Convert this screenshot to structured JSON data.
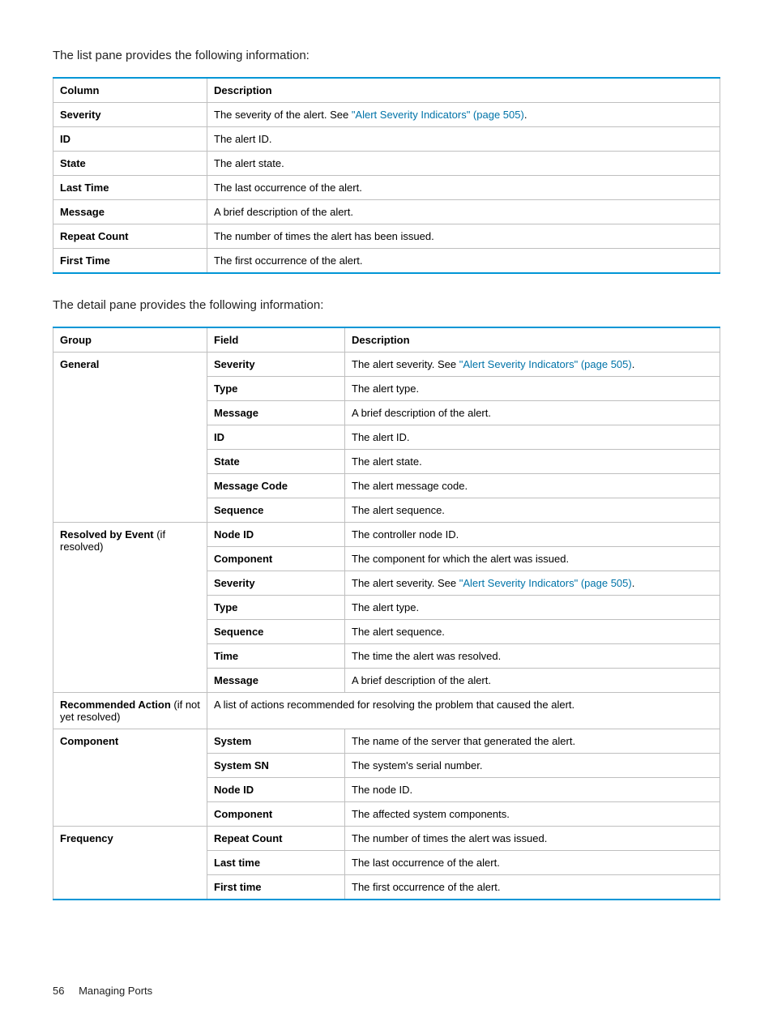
{
  "intro1": "The list pane provides the following information:",
  "intro2": "The detail pane provides the following information:",
  "link_text": "\"Alert Severity Indicators\" (page 505)",
  "link_color": "#0073a8",
  "border_color": "#0096d6",
  "table1": {
    "headers": [
      "Column",
      "Description"
    ],
    "rows": [
      {
        "col": "Severity",
        "desc_pre": "The severity of the alert. See ",
        "has_link": true,
        "desc_post": "."
      },
      {
        "col": "ID",
        "desc": "The alert ID."
      },
      {
        "col": "State",
        "desc": "The alert state."
      },
      {
        "col": "Last Time",
        "desc": "The last occurrence of the alert."
      },
      {
        "col": "Message",
        "desc": "A brief description of the alert."
      },
      {
        "col": "Repeat Count",
        "desc": "The number of times the alert has been issued."
      },
      {
        "col": "First Time",
        "desc": "The first occurrence of the alert."
      }
    ]
  },
  "table2": {
    "headers": [
      "Group",
      "Field",
      "Description"
    ],
    "groups": [
      {
        "name": "General",
        "rows": [
          {
            "field": "Severity",
            "desc_pre": "The alert severity. See ",
            "has_link": true,
            "desc_post": "."
          },
          {
            "field": "Type",
            "desc": "The alert type."
          },
          {
            "field": "Message",
            "desc": "A brief description of the alert."
          },
          {
            "field": "ID",
            "desc": "The alert ID."
          },
          {
            "field": "State",
            "desc": "The alert state."
          },
          {
            "field": "Message Code",
            "desc": "The alert message code."
          },
          {
            "field": "Sequence",
            "desc": "The alert sequence."
          }
        ]
      },
      {
        "name_bold": "Resolved by Event",
        "name_rest": " (if resolved)",
        "rows": [
          {
            "field": "Node ID",
            "desc": "The controller node ID."
          },
          {
            "field": "Component",
            "desc": "The component for which the alert was issued."
          },
          {
            "field": "Severity",
            "desc_pre": "The alert severity. See ",
            "has_link": true,
            "desc_post": "."
          },
          {
            "field": "Type",
            "desc": "The alert type."
          },
          {
            "field": "Sequence",
            "desc": "The alert sequence."
          },
          {
            "field": "Time",
            "desc": "The time the alert was resolved."
          },
          {
            "field": "Message",
            "desc": "A brief description of the alert."
          }
        ]
      },
      {
        "name_bold": "Recommended Action",
        "name_rest": " (if not yet resolved)",
        "spanned_desc": "A list of actions recommended for resolving the problem that caused the alert."
      },
      {
        "name": "Component",
        "rows": [
          {
            "field": "System",
            "desc": "The name of the server that generated the alert."
          },
          {
            "field": "System SN",
            "desc": "The system's serial number."
          },
          {
            "field": "Node ID",
            "desc": "The node ID."
          },
          {
            "field": "Component",
            "desc": "The affected system components."
          }
        ]
      },
      {
        "name": "Frequency",
        "rows": [
          {
            "field": "Repeat Count",
            "desc": "The number of times the alert was issued."
          },
          {
            "field": "Last time",
            "desc": "The last occurrence of the alert."
          },
          {
            "field": "First time",
            "desc": "The first occurrence of the alert."
          }
        ]
      }
    ]
  },
  "footer": {
    "page": "56",
    "title": "Managing Ports"
  }
}
